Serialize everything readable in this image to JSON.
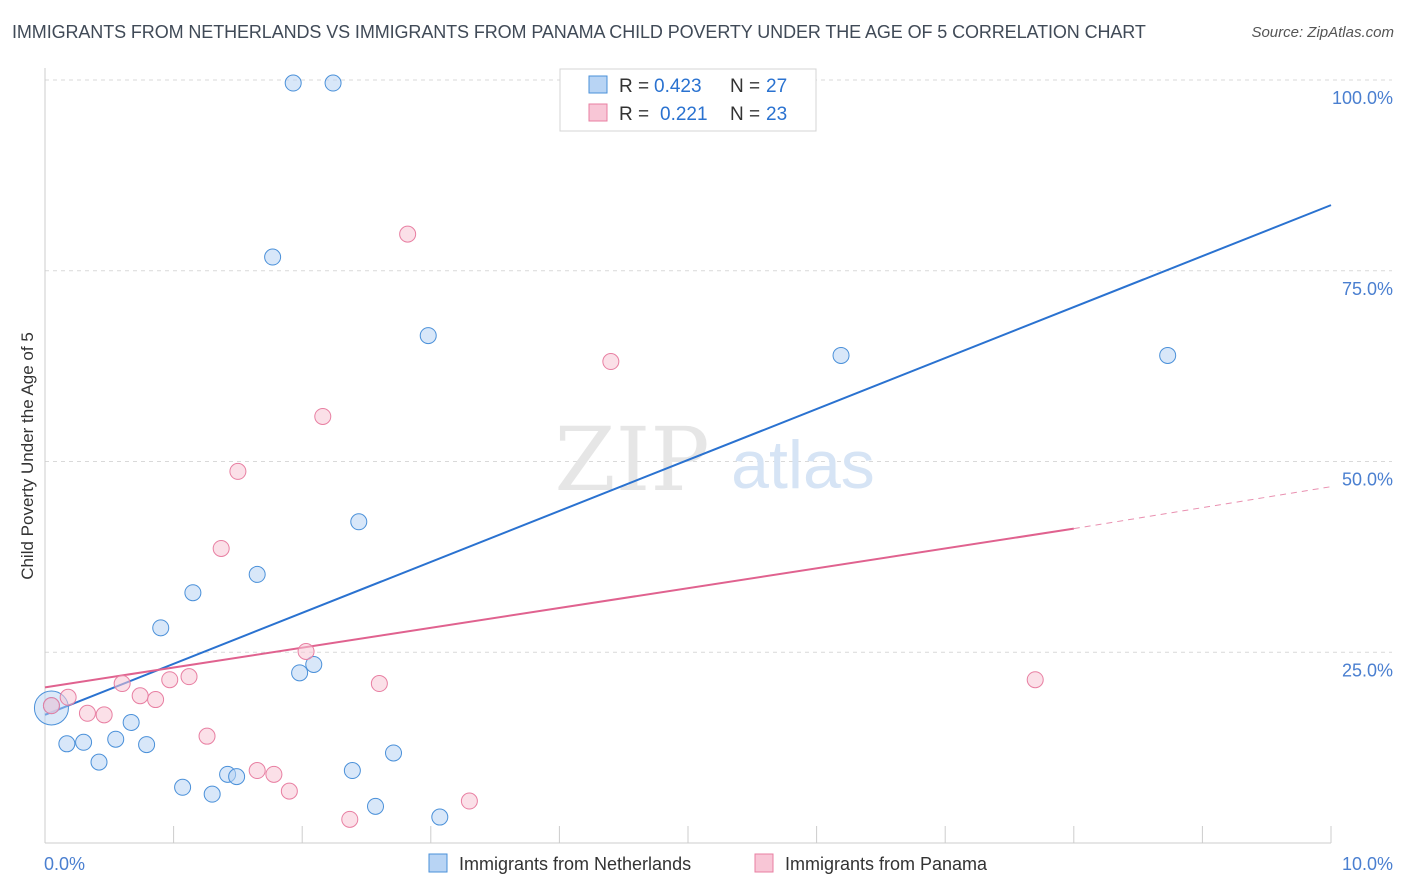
{
  "header": {
    "title": "IMMIGRANTS FROM NETHERLANDS VS IMMIGRANTS FROM PANAMA CHILD POVERTY UNDER THE AGE OF 5 CORRELATION CHART",
    "source": "Source: ZipAtlas.com"
  },
  "watermark": {
    "zip": "ZIP",
    "atlas": "atlas"
  },
  "colors": {
    "blue": "#4a90d9",
    "blue_fill": "#b8d4f4",
    "blue_line": "#2a72d0",
    "pink": "#e87fa2",
    "pink_fill": "#f8c6d6",
    "pink_line": "#e0628f",
    "tick_text": "#4a7fd0",
    "grid": "#d9d9d9"
  },
  "legend": {
    "rows": [
      {
        "r_label": "R =",
        "r_value": "0.423",
        "n_label": "N =",
        "n_value": "27",
        "series": "netherlands"
      },
      {
        "r_label": "R =",
        "r_value": "0.221",
        "n_label": "N =",
        "n_value": "23",
        "series": "panama"
      }
    ]
  },
  "chart_data": {
    "type": "scatter",
    "title": "IMMIGRANTS FROM NETHERLANDS VS IMMIGRANTS FROM PANAMA CHILD POVERTY UNDER THE AGE OF 5 CORRELATION CHART",
    "xlabel": "",
    "ylabel": "Child Poverty Under the Age of 5",
    "xlim": [
      0,
      10
    ],
    "ylim": [
      0,
      100
    ],
    "x_tick_labels": [
      "0.0%",
      "10.0%"
    ],
    "y_ticks": [
      25,
      50,
      75,
      100
    ],
    "y_tick_labels": [
      "25.0%",
      "50.0%",
      "75.0%",
      "100.0%"
    ],
    "grid": true,
    "legend_position": "top-center",
    "bottom_legend": [
      "Immigrants from Netherlands",
      "Immigrants from Panama"
    ],
    "series": [
      {
        "name": "Immigrants from Netherlands",
        "color": "blue",
        "points": [
          [
            0.05,
            18.0
          ],
          [
            0.17,
            13.0
          ],
          [
            0.3,
            13.2
          ],
          [
            0.42,
            10.6
          ],
          [
            0.55,
            13.6
          ],
          [
            0.67,
            15.8
          ],
          [
            0.79,
            12.9
          ],
          [
            0.9,
            28.2
          ],
          [
            1.07,
            7.3
          ],
          [
            1.15,
            32.8
          ],
          [
            1.3,
            6.4
          ],
          [
            1.42,
            9.0
          ],
          [
            1.49,
            8.7
          ],
          [
            1.65,
            35.2
          ],
          [
            1.77,
            76.8
          ],
          [
            1.93,
            99.6
          ],
          [
            1.98,
            22.3
          ],
          [
            2.09,
            23.4
          ],
          [
            2.24,
            99.6
          ],
          [
            2.39,
            9.5
          ],
          [
            2.44,
            42.1
          ],
          [
            2.57,
            4.8
          ],
          [
            2.71,
            11.8
          ],
          [
            2.98,
            66.5
          ],
          [
            3.07,
            3.4
          ],
          [
            6.19,
            63.9
          ],
          [
            8.73,
            63.9
          ]
        ],
        "trend": {
          "x": [
            0,
            10
          ],
          "y": [
            16.8,
            83.6
          ]
        }
      },
      {
        "name": "Immigrants from Panama",
        "color": "pink",
        "points": [
          [
            0.05,
            18.0
          ],
          [
            0.18,
            19.1
          ],
          [
            0.33,
            17.0
          ],
          [
            0.46,
            16.8
          ],
          [
            0.6,
            20.9
          ],
          [
            0.74,
            19.3
          ],
          [
            0.86,
            18.8
          ],
          [
            0.97,
            21.4
          ],
          [
            1.12,
            21.8
          ],
          [
            1.26,
            14.0
          ],
          [
            1.37,
            38.6
          ],
          [
            1.5,
            48.7
          ],
          [
            1.65,
            9.5
          ],
          [
            1.78,
            9.0
          ],
          [
            1.9,
            6.8
          ],
          [
            2.03,
            25.1
          ],
          [
            2.16,
            55.9
          ],
          [
            2.37,
            3.1
          ],
          [
            2.6,
            20.9
          ],
          [
            2.82,
            79.8
          ],
          [
            3.3,
            5.5
          ],
          [
            4.4,
            63.1
          ],
          [
            7.7,
            21.4
          ]
        ],
        "trend": {
          "x": [
            0,
            8.0
          ],
          "y": [
            20.4,
            41.2
          ],
          "dashed_to": [
            10,
            46.7
          ]
        }
      }
    ]
  }
}
